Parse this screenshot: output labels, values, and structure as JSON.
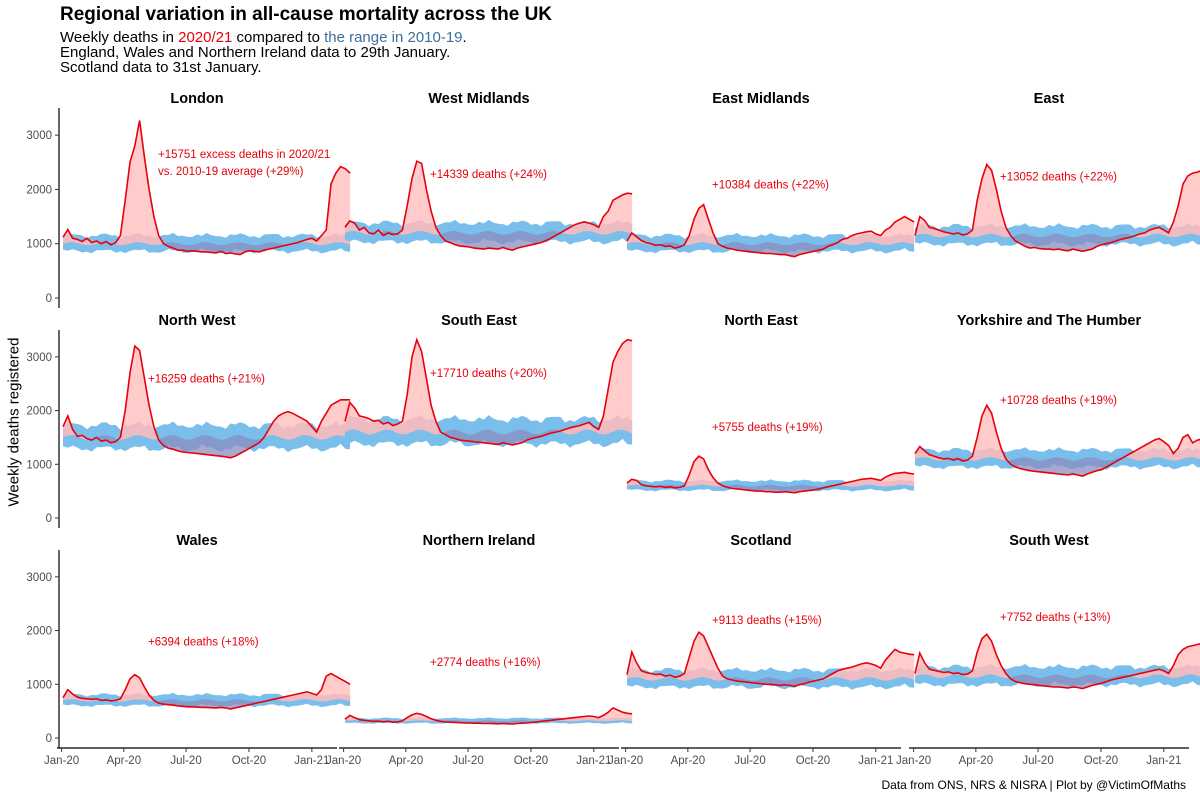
{
  "title": "Regional variation in all-cause mortality across the UK",
  "subtitle": {
    "part1": "Weekly deaths in ",
    "highlight_current": "2020/21",
    "part2": " compared to ",
    "highlight_range": "the range in 2010-19",
    "part3": ".",
    "line2": "England, Wales and Northern Ireland data to 29th January.",
    "line3": "Scotland data to 31st January."
  },
  "caption": "Data from ONS, NRS & NISRA | Plot by @VictimOfMaths",
  "colors": {
    "current_line": "#e8000b",
    "excess_fill": "#ffc2c2",
    "range_fill": "#7abfec",
    "overlap_fill": "#8a8cbf",
    "subtitle_range_text": "#3d6e9c",
    "axis": "#000000"
  },
  "chart_data": {
    "type": "area",
    "facet_grid": "3 rows x 4 columns, shared axes",
    "ylabel": "Weekly deaths registered",
    "ylim": [
      0,
      3500
    ],
    "yticks": [
      0,
      1000,
      2000,
      3000
    ],
    "xticks": [
      "Jan-20",
      "Apr-20",
      "Jul-20",
      "Oct-20",
      "Jan-21"
    ],
    "xlim": [
      "2020-01-03",
      "2021-01-29"
    ],
    "x_week_start": "2020-01-03",
    "series": [
      {
        "name": "2020/21",
        "style": "red line"
      },
      {
        "name": "Range 2010-19",
        "style": "blue band"
      }
    ],
    "panels": [
      {
        "name": "London",
        "annotation": [
          "+15751 excess deaths in 2020/21",
          "vs. 2010-19 average (+29%)"
        ],
        "base": 1000,
        "values": [
          1120,
          1260,
          1100,
          1080,
          1040,
          1100,
          1020,
          1050,
          1000,
          1040,
          980,
          1020,
          1150,
          1800,
          2500,
          2800,
          3270,
          2600,
          2000,
          1500,
          1150,
          1000,
          950,
          920,
          880,
          880,
          860,
          870,
          860,
          850,
          850,
          840,
          830,
          860,
          820,
          830,
          810,
          800,
          850,
          870,
          860,
          850,
          880,
          900,
          920,
          940,
          960,
          980,
          1000,
          1020,
          1050,
          1080,
          1100,
          1050,
          1150,
          1250,
          2100,
          2300,
          2420,
          2380,
          2300
        ]
      },
      {
        "name": "West Midlands",
        "annotation": [
          "+14339 deaths (+24%)"
        ],
        "base": 1200,
        "values": [
          1300,
          1420,
          1380,
          1250,
          1300,
          1200,
          1180,
          1250,
          1150,
          1200,
          1170,
          1180,
          1250,
          1700,
          2200,
          2520,
          2480,
          2000,
          1600,
          1300,
          1150,
          1050,
          1020,
          980,
          960,
          950,
          940,
          920,
          910,
          900,
          920,
          910,
          900,
          930,
          900,
          880,
          920,
          940,
          960,
          980,
          1000,
          1020,
          1060,
          1100,
          1150,
          1200,
          1250,
          1300,
          1350,
          1380,
          1400,
          1380,
          1350,
          1300,
          1500,
          1600,
          1800,
          1850,
          1900,
          1930,
          1920
        ]
      },
      {
        "name": "East Midlands",
        "annotation": [
          "+10384 deaths (+22%)"
        ],
        "base": 1000,
        "values": [
          1050,
          1200,
          1130,
          1060,
          1020,
          1000,
          970,
          980,
          950,
          960,
          920,
          940,
          980,
          1150,
          1450,
          1650,
          1720,
          1450,
          1200,
          1000,
          950,
          920,
          900,
          880,
          870,
          860,
          850,
          840,
          830,
          820,
          820,
          810,
          800,
          800,
          780,
          760,
          800,
          820,
          840,
          860,
          880,
          900,
          950,
          980,
          1020,
          1080,
          1100,
          1150,
          1180,
          1200,
          1220,
          1230,
          1180,
          1150,
          1250,
          1300,
          1400,
          1450,
          1500,
          1450,
          1400
        ]
      },
      {
        "name": "East",
        "annotation": [
          "+13052 deaths (+22%)"
        ],
        "base": 1150,
        "values": [
          1150,
          1500,
          1430,
          1300,
          1280,
          1250,
          1220,
          1200,
          1180,
          1200,
          1160,
          1180,
          1250,
          1800,
          2200,
          2460,
          2350,
          2000,
          1600,
          1300,
          1150,
          1050,
          1000,
          950,
          920,
          930,
          910,
          900,
          900,
          890,
          900,
          880,
          870,
          900,
          880,
          860,
          880,
          900,
          950,
          980,
          1000,
          1020,
          1050,
          1080,
          1100,
          1120,
          1150,
          1180,
          1200,
          1250,
          1280,
          1300,
          1250,
          1200,
          1400,
          1700,
          2100,
          2250,
          2300,
          2320,
          2350
        ]
      },
      {
        "name": "North West",
        "annotation": [
          "+16259 deaths (+21%)"
        ],
        "base": 1500,
        "values": [
          1700,
          1900,
          1650,
          1520,
          1540,
          1480,
          1450,
          1500,
          1430,
          1450,
          1400,
          1420,
          1500,
          2000,
          2700,
          3200,
          3120,
          2600,
          2100,
          1700,
          1450,
          1350,
          1300,
          1280,
          1250,
          1230,
          1220,
          1210,
          1200,
          1190,
          1180,
          1170,
          1160,
          1150,
          1140,
          1120,
          1150,
          1200,
          1250,
          1300,
          1350,
          1400,
          1500,
          1650,
          1800,
          1900,
          1950,
          1980,
          1950,
          1900,
          1850,
          1800,
          1700,
          1600,
          1800,
          1950,
          2100,
          2150,
          2200,
          2200,
          2200
        ]
      },
      {
        "name": "South East",
        "annotation": [
          "+17710 deaths (+20%)"
        ],
        "base": 1600,
        "values": [
          1800,
          2150,
          2050,
          1900,
          1880,
          1850,
          1800,
          1820,
          1750,
          1780,
          1720,
          1750,
          1800,
          2300,
          3000,
          3320,
          3100,
          2600,
          2100,
          1800,
          1600,
          1550,
          1500,
          1480,
          1450,
          1440,
          1430,
          1420,
          1410,
          1400,
          1390,
          1380,
          1370,
          1400,
          1380,
          1360,
          1380,
          1400,
          1450,
          1480,
          1500,
          1520,
          1550,
          1580,
          1600,
          1620,
          1650,
          1680,
          1700,
          1720,
          1750,
          1780,
          1700,
          1650,
          1900,
          2400,
          2900,
          3100,
          3250,
          3320,
          3300
        ]
      },
      {
        "name": "North East",
        "annotation": [
          "+5755 deaths (+19%)"
        ],
        "base": 600,
        "values": [
          650,
          720,
          700,
          620,
          600,
          590,
          580,
          590,
          570,
          580,
          560,
          570,
          600,
          800,
          1050,
          1150,
          1100,
          900,
          750,
          650,
          600,
          570,
          550,
          540,
          530,
          520,
          510,
          500,
          500,
          490,
          490,
          480,
          480,
          490,
          480,
          470,
          490,
          500,
          510,
          520,
          540,
          560,
          580,
          600,
          620,
          640,
          660,
          680,
          700,
          720,
          730,
          740,
          720,
          700,
          760,
          800,
          830,
          840,
          850,
          830,
          820
        ]
      },
      {
        "name": "Yorkshire and The Humber",
        "annotation": [
          "+10728 deaths (+19%)"
        ],
        "base": 1100,
        "values": [
          1200,
          1330,
          1250,
          1180,
          1150,
          1120,
          1100,
          1110,
          1080,
          1100,
          1060,
          1080,
          1150,
          1500,
          1900,
          2100,
          1950,
          1600,
          1300,
          1100,
          1000,
          950,
          920,
          900,
          880,
          870,
          860,
          850,
          840,
          830,
          820,
          810,
          800,
          820,
          800,
          780,
          820,
          850,
          880,
          900,
          950,
          1000,
          1050,
          1100,
          1150,
          1200,
          1250,
          1300,
          1350,
          1400,
          1450,
          1480,
          1420,
          1350,
          1200,
          1300,
          1500,
          1550,
          1400,
          1450,
          1470
        ]
      },
      {
        "name": "Wales",
        "annotation": [
          "+6394 deaths (+18%)"
        ],
        "base": 700,
        "values": [
          750,
          900,
          820,
          760,
          740,
          730,
          720,
          730,
          700,
          710,
          690,
          700,
          730,
          900,
          1100,
          1180,
          1120,
          950,
          800,
          700,
          650,
          630,
          620,
          610,
          600,
          590,
          580,
          580,
          575,
          570,
          570,
          565,
          560,
          570,
          560,
          540,
          560,
          580,
          600,
          620,
          640,
          660,
          680,
          700,
          720,
          740,
          760,
          780,
          800,
          820,
          840,
          860,
          830,
          800,
          900,
          1150,
          1200,
          1150,
          1100,
          1050,
          1000
        ]
      },
      {
        "name": "Northern Ireland",
        "annotation": [
          "+2774 deaths (+16%)"
        ],
        "base": 320,
        "values": [
          350,
          420,
          380,
          340,
          330,
          320,
          310,
          315,
          300,
          310,
          295,
          300,
          320,
          380,
          430,
          460,
          440,
          400,
          360,
          330,
          310,
          300,
          295,
          290,
          285,
          280,
          280,
          275,
          275,
          270,
          270,
          268,
          265,
          270,
          265,
          260,
          270,
          275,
          280,
          290,
          300,
          310,
          320,
          330,
          340,
          350,
          360,
          370,
          380,
          390,
          400,
          410,
          400,
          380,
          420,
          480,
          560,
          520,
          480,
          460,
          450
        ]
      },
      {
        "name": "Scotland",
        "annotation": [
          "+9113 deaths (+15%)"
        ],
        "base": 1100,
        "values": [
          1180,
          1600,
          1400,
          1250,
          1220,
          1200,
          1180,
          1190,
          1150,
          1170,
          1130,
          1150,
          1200,
          1500,
          1800,
          1970,
          1900,
          1700,
          1500,
          1300,
          1150,
          1100,
          1080,
          1060,
          1050,
          1040,
          1030,
          1020,
          1010,
          1000,
          1000,
          990,
          980,
          990,
          980,
          960,
          990,
          1010,
          1040,
          1060,
          1080,
          1100,
          1150,
          1200,
          1250,
          1280,
          1300,
          1320,
          1350,
          1380,
          1400,
          1380,
          1350,
          1300,
          1450,
          1550,
          1650,
          1600,
          1580,
          1560,
          1550
        ]
      },
      {
        "name": "South West",
        "annotation": [
          "+7752 deaths (+13%)"
        ],
        "base": 1150,
        "values": [
          1200,
          1580,
          1400,
          1280,
          1260,
          1240,
          1220,
          1230,
          1200,
          1210,
          1180,
          1190,
          1250,
          1600,
          1850,
          1930,
          1800,
          1550,
          1350,
          1200,
          1100,
          1050,
          1030,
          1010,
          1000,
          990,
          980,
          970,
          960,
          950,
          950,
          940,
          930,
          950,
          940,
          920,
          950,
          980,
          1000,
          1020,
          1050,
          1080,
          1100,
          1120,
          1140,
          1160,
          1180,
          1200,
          1220,
          1240,
          1260,
          1280,
          1250,
          1200,
          1350,
          1550,
          1650,
          1700,
          1720,
          1740,
          1760
        ]
      }
    ]
  }
}
